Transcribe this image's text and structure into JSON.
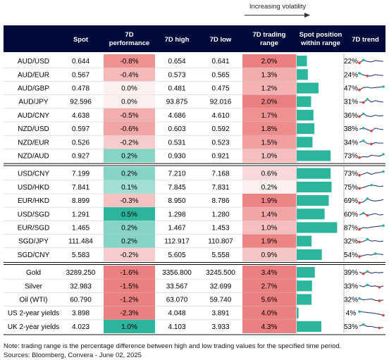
{
  "volatility_label": "Increasing volatility",
  "headers": [
    "",
    "Spot",
    "7D performance",
    "7D high",
    "7D low",
    "7D trading range",
    "Spot position within range",
    "7D trend"
  ],
  "colors": {
    "header_bg": "#000a3b",
    "neg_strong": "#ec7f7f",
    "neg_light": "#fbe0e0",
    "pos_strong": "#2cb59c",
    "pos_light": "#bfe8de",
    "bar": "#2cb59c",
    "trend_line": "#2a3f7e",
    "trend_high": "#2cb59c",
    "trend_low": "#e23e3e"
  },
  "notes": [
    "Note: trading range is the percentage difference between high and low trading values for the specified time period.",
    "Sources: Bloomberg, Convera - June 02, 2025"
  ],
  "chart_data": {
    "type": "table",
    "groups": [
      {
        "rows": [
          {
            "name": "AUD/USD",
            "spot": "0.644",
            "perf": "-0.8%",
            "high": "0.654",
            "low": "0.641",
            "range": "2.0%",
            "position": 22,
            "position_label": "22%",
            "trend": [
              0.3,
              0.6,
              0.45,
              0.4,
              0.55,
              0.5,
              0.45
            ]
          },
          {
            "name": "AUD/EUR",
            "spot": "0.567",
            "perf": "-0.4%",
            "high": "0.573",
            "low": "0.565",
            "range": "1.3%",
            "position": 24,
            "position_label": "24%",
            "trend": [
              0.65,
              0.45,
              0.35,
              0.35,
              0.5,
              0.42,
              0.4
            ]
          },
          {
            "name": "AUD/GBP",
            "spot": "0.478",
            "perf": "0.0%",
            "high": "0.481",
            "low": "0.475",
            "range": "1.2%",
            "position": 47,
            "position_label": "47%",
            "trend": [
              0.3,
              0.55,
              0.6,
              0.5,
              0.55,
              0.6,
              0.65
            ]
          },
          {
            "name": "AUD/JPY",
            "spot": "92.596",
            "perf": "0.0%",
            "high": "93.875",
            "low": "92.016",
            "range": "2.0%",
            "position": 31,
            "position_label": "31%",
            "trend": [
              0.45,
              0.4,
              0.75,
              0.45,
              0.6,
              0.5,
              0.45
            ]
          },
          {
            "name": "AUD/CNY",
            "spot": "4.638",
            "perf": "-0.5%",
            "high": "4.686",
            "low": "4.610",
            "range": "1.7%",
            "position": 36,
            "position_label": "36%",
            "trend": [
              0.35,
              0.65,
              0.4,
              0.35,
              0.5,
              0.4,
              0.45
            ]
          },
          {
            "name": "NZD/USD",
            "spot": "0.597",
            "perf": "-0.6%",
            "high": "0.603",
            "low": "0.592",
            "range": "1.8%",
            "position": 38,
            "position_label": "38%",
            "trend": [
              0.45,
              0.55,
              0.4,
              0.25,
              0.55,
              0.45,
              0.4
            ]
          },
          {
            "name": "NZD/EUR",
            "spot": "0.526",
            "perf": "-0.2%",
            "high": "0.531",
            "low": "0.523",
            "range": "1.5%",
            "position": 34,
            "position_label": "34%",
            "trend": [
              0.5,
              0.65,
              0.35,
              0.3,
              0.45,
              0.4,
              0.4
            ]
          },
          {
            "name": "NZD/AUD",
            "spot": "0.927",
            "perf": "0.2%",
            "high": "0.930",
            "low": "0.921",
            "range": "1.0%",
            "position": 73,
            "position_label": "73%",
            "trend": [
              0.3,
              0.4,
              0.35,
              0.55,
              0.5,
              0.45,
              0.65
            ]
          }
        ]
      },
      {
        "rows": [
          {
            "name": "USD/CNY",
            "spot": "7.199",
            "perf": "0.2%",
            "high": "7.210",
            "low": "7.168",
            "range": "0.6%",
            "position": 73,
            "position_label": "73%",
            "trend": [
              0.3,
              0.45,
              0.6,
              0.4,
              0.55,
              0.6,
              0.7
            ]
          },
          {
            "name": "USD/HKD",
            "spot": "7.841",
            "perf": "0.1%",
            "high": "7.845",
            "low": "7.831",
            "range": "0.2%",
            "position": 75,
            "position_label": "75%",
            "trend": [
              0.35,
              0.45,
              0.6,
              0.7,
              0.65,
              0.55,
              0.6
            ]
          },
          {
            "name": "EUR/HKD",
            "spot": "8.899",
            "perf": "-0.3%",
            "high": "8.950",
            "low": "8.786",
            "range": "1.9%",
            "position": 69,
            "position_label": "69%",
            "trend": [
              0.25,
              0.35,
              0.7,
              0.5,
              0.45,
              0.5,
              0.6
            ]
          },
          {
            "name": "USD/SGD",
            "spot": "1.291",
            "perf": "0.5%",
            "high": "1.298",
            "low": "1.280",
            "range": "1.4%",
            "position": 60,
            "position_label": "60%",
            "trend": [
              0.4,
              0.6,
              0.35,
              0.45,
              0.55,
              0.4,
              0.45
            ]
          },
          {
            "name": "EUR/SGD",
            "spot": "1.465",
            "perf": "0.2%",
            "high": "1.467",
            "low": "1.453",
            "range": "1.0%",
            "position": 87,
            "position_label": "87%",
            "trend": [
              0.3,
              0.5,
              0.45,
              0.55,
              0.6,
              0.65,
              0.7
            ]
          },
          {
            "name": "SGD/JPY",
            "spot": "111.484",
            "perf": "0.2%",
            "high": "112.917",
            "low": "110.807",
            "range": "1.9%",
            "position": 32,
            "position_label": "32%",
            "trend": [
              0.4,
              0.45,
              0.7,
              0.5,
              0.55,
              0.45,
              0.5
            ]
          },
          {
            "name": "SGD/CNY",
            "spot": "5.583",
            "perf": "-0.2%",
            "high": "5.605",
            "low": "5.558",
            "range": "0.9%",
            "position": 54,
            "position_label": "54%",
            "trend": [
              0.3,
              0.4,
              0.5,
              0.45,
              0.6,
              0.55,
              0.5
            ]
          }
        ]
      },
      {
        "rows": [
          {
            "name": "Gold",
            "spot": "3289.250",
            "perf": "-1.6%",
            "high": "3356.800",
            "low": "3245.500",
            "range": "3.4%",
            "position": 39,
            "position_label": "39%",
            "trend": [
              0.55,
              0.35,
              0.6,
              0.4,
              0.5,
              0.45,
              0.5
            ]
          },
          {
            "name": "Silver",
            "spot": "32.983",
            "perf": "-1.5%",
            "high": "33.567",
            "low": "32.699",
            "range": "2.7%",
            "position": 33,
            "position_label": "33%",
            "trend": [
              0.55,
              0.4,
              0.6,
              0.45,
              0.5,
              0.35,
              0.5
            ]
          },
          {
            "name": "Oil (WTI)",
            "spot": "60.790",
            "perf": "-1.2%",
            "high": "63.070",
            "low": "59.740",
            "range": "5.6%",
            "position": 32,
            "position_label": "32%",
            "trend": [
              0.6,
              0.45,
              0.5,
              0.55,
              0.4,
              0.35,
              0.45
            ]
          },
          {
            "name": "US 2-year yields",
            "spot": "3.898",
            "perf": "-2.3%",
            "high": "4.048",
            "low": "3.891",
            "range": "4.0%",
            "position": 4,
            "position_label": "4%",
            "trend": [
              0.65,
              0.6,
              0.55,
              0.5,
              0.45,
              0.35,
              0.25
            ]
          },
          {
            "name": "UK 2-year yields",
            "spot": "4.023",
            "perf": "1.0%",
            "high": "4.103",
            "low": "3.933",
            "range": "4.3%",
            "position": 53,
            "position_label": "53%",
            "trend": [
              0.55,
              0.7,
              0.5,
              0.5,
              0.4,
              0.35,
              0.4
            ]
          }
        ]
      }
    ]
  }
}
